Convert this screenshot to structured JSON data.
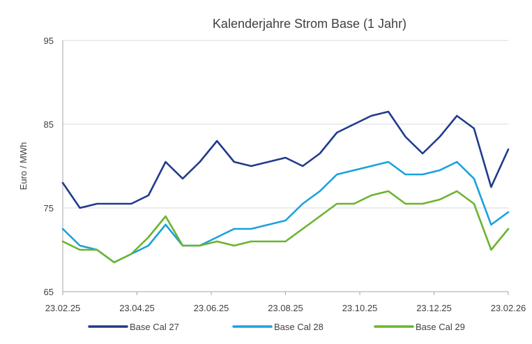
{
  "chart_data": {
    "type": "line",
    "title": "Kalenderjahre Strom Base (1 Jahr)",
    "xlabel": "",
    "ylabel": "Euro / MWh",
    "ylim": [
      65,
      95
    ],
    "yticks": [
      "65",
      "75",
      "85",
      "95"
    ],
    "xticks": [
      "23.02.25",
      "23.04.25",
      "23.06.25",
      "23.08.25",
      "23.10.25",
      "23.12.25",
      "23.02.26"
    ],
    "grid": "horizontal",
    "legend_position": "bottom",
    "x": [
      "23.02.25",
      "09.03.25",
      "23.03.25",
      "06.04.25",
      "20.04.25",
      "04.05.25",
      "18.05.25",
      "01.06.25",
      "15.06.25",
      "29.06.25",
      "13.07.25",
      "27.07.25",
      "10.08.25",
      "24.08.25",
      "07.09.25",
      "21.09.25",
      "05.10.25",
      "19.10.25",
      "02.11.25",
      "16.11.25",
      "30.11.25",
      "14.12.25",
      "28.12.25",
      "11.01.26",
      "25.01.26",
      "08.02.26",
      "23.02.26"
    ],
    "series": [
      {
        "name": "Base Cal 27",
        "color": "#1f3b8c",
        "values": [
          78.0,
          75.0,
          75.5,
          75.5,
          75.5,
          76.5,
          80.5,
          78.5,
          80.5,
          83.0,
          80.5,
          80.0,
          80.5,
          81.0,
          80.0,
          81.5,
          84.0,
          85.0,
          86.0,
          86.5,
          83.5,
          81.5,
          83.5,
          86.0,
          84.5,
          77.5,
          82.0
        ]
      },
      {
        "name": "Base Cal 28",
        "color": "#1ba1dc",
        "values": [
          72.5,
          70.5,
          70.0,
          68.5,
          69.5,
          70.5,
          73.0,
          70.5,
          70.5,
          71.5,
          72.5,
          72.5,
          73.0,
          73.5,
          75.5,
          77.0,
          79.0,
          79.5,
          80.0,
          80.5,
          79.0,
          79.0,
          79.5,
          80.5,
          78.5,
          73.0,
          74.5
        ]
      },
      {
        "name": "Base Cal 29",
        "color": "#6ab42d",
        "values": [
          71.0,
          70.0,
          70.0,
          68.5,
          69.5,
          71.5,
          74.0,
          70.5,
          70.5,
          71.0,
          70.5,
          71.0,
          71.0,
          71.0,
          72.5,
          74.0,
          75.5,
          75.5,
          76.5,
          77.0,
          75.5,
          75.5,
          76.0,
          77.0,
          75.5,
          70.0,
          72.5
        ]
      }
    ]
  }
}
